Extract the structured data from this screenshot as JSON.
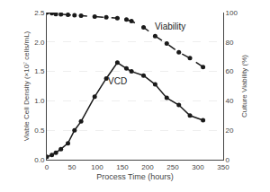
{
  "chart_data": {
    "type": "line",
    "x": [
      0,
      10,
      18,
      28,
      42,
      55,
      68,
      95,
      118,
      140,
      158,
      168,
      192,
      215,
      238,
      262,
      284,
      310
    ],
    "series": [
      {
        "values": [
          0.05,
          0.08,
          0.12,
          0.18,
          0.28,
          0.5,
          0.65,
          1.07,
          1.38,
          1.65,
          1.55,
          1.5,
          1.43,
          1.28,
          1.05,
          0.93,
          0.75,
          0.67
        ],
        "color": "#1a1a1a",
        "line_style": "solid",
        "marker": "circle",
        "axis": "y"
      },
      {
        "values": [
          100,
          99.5,
          99,
          98.8,
          98.5,
          98.2,
          97.8,
          97.2,
          96.8,
          96.2,
          95.2,
          94.2,
          90,
          84,
          79,
          73,
          69,
          63
        ],
        "color": "#1a1a1a",
        "line_style": "dashed",
        "marker": "circle",
        "axis": "y2"
      }
    ],
    "xlabel": "Process Time (hours)",
    "ylabel": "Viable Cell Density (×10⁷ cells/mL)",
    "y2label": "Culture Viability (%)",
    "xlim": [
      0,
      350
    ],
    "xticks": [
      0,
      50,
      100,
      150,
      200,
      250,
      300,
      350
    ],
    "ylim": [
      0.0,
      2.5
    ],
    "yticks": [
      {
        "value": 0.0,
        "label": "0.0"
      },
      0.5,
      {
        "value": 1.0,
        "label": "1.0"
      },
      1.5,
      {
        "value": 2.0,
        "label": "2.0"
      },
      2.5
    ],
    "y2lim": [
      0,
      100
    ],
    "y2ticks": [
      0,
      20,
      40,
      60,
      80,
      100
    ],
    "annotations": [
      {
        "text": "VCD",
        "x": 118,
        "y": 1.22,
        "axis": "y",
        "color": "#1a1a1a"
      },
      {
        "text": "Viability",
        "x": 210,
        "y": 86,
        "axis": "y2",
        "color": "#1a1a1a"
      }
    ],
    "grid": "y"
  }
}
